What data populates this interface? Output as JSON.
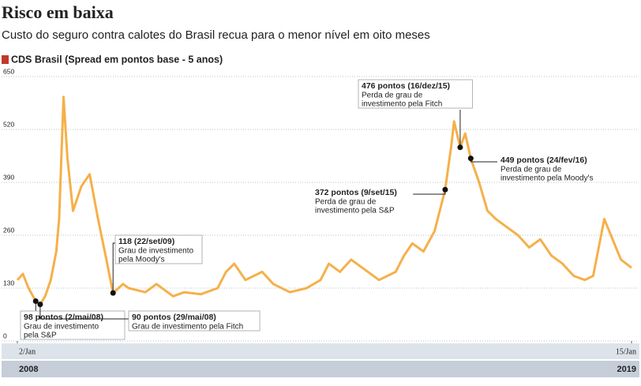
{
  "chart_data": {
    "type": "line",
    "title": "Risco em baixa",
    "subtitle": "Custo do seguro contra calotes do Brasil recua para o menor nível em oito meses",
    "x": [
      2008.0,
      2008.1,
      2008.2,
      2008.33,
      2008.41,
      2008.5,
      2008.6,
      2008.7,
      2008.75,
      2008.83,
      2008.9,
      2009.0,
      2009.15,
      2009.3,
      2009.45,
      2009.6,
      2009.72,
      2009.9,
      2010.0,
      2010.3,
      2010.5,
      2010.8,
      2011.0,
      2011.3,
      2011.6,
      2011.75,
      2011.9,
      2012.1,
      2012.4,
      2012.6,
      2012.9,
      2013.2,
      2013.45,
      2013.6,
      2013.8,
      2014.0,
      2014.2,
      2014.5,
      2014.8,
      2014.95,
      2015.1,
      2015.3,
      2015.5,
      2015.69,
      2015.8,
      2015.85,
      2015.96,
      2016.05,
      2016.15,
      2016.3,
      2016.45,
      2016.6,
      2016.8,
      2017.0,
      2017.2,
      2017.4,
      2017.6,
      2017.8,
      2018.0,
      2018.2,
      2018.35,
      2018.55,
      2018.7,
      2018.85,
      2019.04
    ],
    "series": [
      {
        "name": "CDS Brasil (Spread em pontos base - 5 anos)",
        "color": "#f5b04a",
        "values": [
          150,
          165,
          130,
          98,
          90,
          110,
          150,
          220,
          300,
          600,
          450,
          320,
          380,
          410,
          300,
          200,
          118,
          140,
          130,
          120,
          140,
          110,
          120,
          115,
          130,
          170,
          190,
          150,
          170,
          140,
          120,
          130,
          150,
          190,
          170,
          200,
          180,
          150,
          170,
          210,
          240,
          220,
          270,
          372,
          480,
          540,
          476,
          510,
          449,
          390,
          320,
          300,
          280,
          260,
          230,
          250,
          210,
          190,
          160,
          150,
          160,
          300,
          250,
          200,
          180
        ]
      }
    ],
    "legend_color": "#c0392b",
    "ylim": [
      0,
      650
    ],
    "yticks": [
      0,
      130,
      260,
      390,
      520,
      650
    ],
    "grid": true,
    "xlim": [
      2008.0,
      2019.04
    ],
    "xticks": [
      {
        "value": 2008.0,
        "label": "2/Jan"
      },
      {
        "value": 2019.04,
        "label": "15/Jan"
      }
    ],
    "x_year_labels": [
      "2008",
      "2019"
    ],
    "annotations": [
      {
        "x": 2008.33,
        "value": 98,
        "label": "98 pontos (2/mai/08)",
        "note": [
          "Grau de investimento",
          "pela S&P"
        ]
      },
      {
        "x": 2008.41,
        "value": 90,
        "label": "90 pontos (29/mai/08)",
        "note": [
          "Grau de investimento pela Fitch"
        ]
      },
      {
        "x": 2009.72,
        "value": 118,
        "label": "118 (22/set/09)",
        "note": [
          "Grau de investimento",
          "pela Moody's"
        ]
      },
      {
        "x": 2015.69,
        "value": 372,
        "label": "372 pontos (9/set/15)",
        "note": [
          "Perda de grau de",
          "investimento pela S&P"
        ]
      },
      {
        "x": 2015.96,
        "value": 476,
        "label": "476 pontos (16/dez/15)",
        "note": [
          "Perda de grau de",
          "investimento pela Fitch"
        ]
      },
      {
        "x": 2016.15,
        "value": 449,
        "label": "449 pontos (24/fev/16)",
        "note": [
          "Perda de grau de",
          "investimento pela Moody's"
        ]
      }
    ]
  }
}
